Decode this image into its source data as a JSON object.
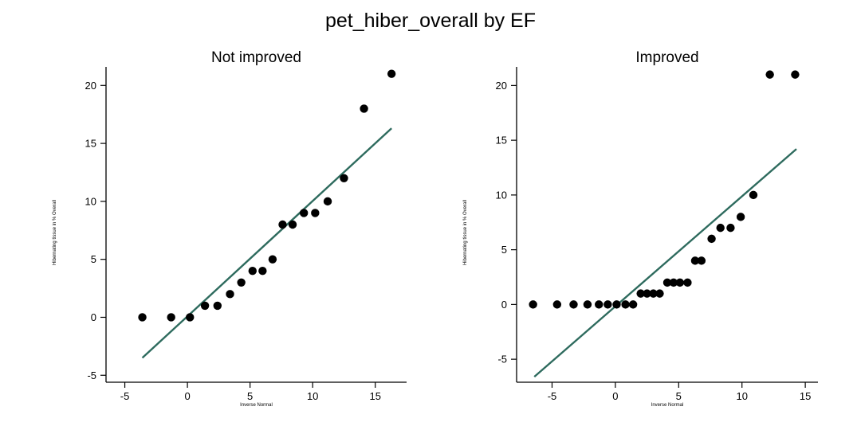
{
  "title": "pet_hiber_overall by EF",
  "colors": {
    "points": "#000000",
    "fit_line": "#2e6b5e",
    "axis": "#000000"
  },
  "chart_data": [
    {
      "type": "scatter",
      "title": "Not improved",
      "xlabel": "Inverse Normal",
      "ylabel": "Hibernating tissue in % Overall",
      "xlim": [
        -6.5,
        17.5
      ],
      "ylim": [
        -5.6,
        21.6
      ],
      "xticks": [
        -5,
        0,
        5,
        10,
        15
      ],
      "yticks": [
        -5,
        0,
        5,
        10,
        15,
        20
      ],
      "x": [
        -3.6,
        -1.3,
        0.2,
        1.4,
        2.4,
        3.4,
        4.3,
        5.2,
        6.0,
        6.8,
        7.6,
        8.4,
        9.3,
        10.2,
        11.2,
        12.5,
        14.1,
        16.3
      ],
      "y": [
        0,
        0,
        0,
        1,
        1,
        2,
        3,
        4,
        4,
        5,
        8,
        8,
        9,
        9,
        10,
        12,
        18,
        21
      ],
      "fit_line": {
        "x": [
          -3.6,
          16.3
        ],
        "y": [
          -3.5,
          16.3
        ]
      },
      "grid": false
    },
    {
      "type": "scatter",
      "title": "Improved",
      "xlabel": "Inverse Normal",
      "ylabel": "Hibernating tissue in % Overall",
      "xlim": [
        -7.8,
        16.0
      ],
      "ylim": [
        -7.1,
        21.7
      ],
      "xticks": [
        -5,
        0,
        5,
        10,
        15
      ],
      "yticks": [
        -5,
        0,
        5,
        10,
        15,
        20
      ],
      "x": [
        -6.5,
        -4.6,
        -3.3,
        -2.2,
        -1.3,
        -0.6,
        0.1,
        0.8,
        1.4,
        2.0,
        2.5,
        3.0,
        3.5,
        4.1,
        4.6,
        5.1,
        5.7,
        6.3,
        6.8,
        7.6,
        8.3,
        9.1,
        9.9,
        10.9,
        12.2,
        14.2
      ],
      "y": [
        0,
        0,
        0,
        0,
        0,
        0,
        0,
        0,
        0,
        1,
        1,
        1,
        1,
        2,
        2,
        2,
        2,
        4,
        4,
        6,
        7,
        7,
        8,
        10,
        21,
        21
      ],
      "fit_line": {
        "x": [
          -6.4,
          14.3
        ],
        "y": [
          -6.6,
          14.2
        ]
      },
      "grid": false
    }
  ]
}
